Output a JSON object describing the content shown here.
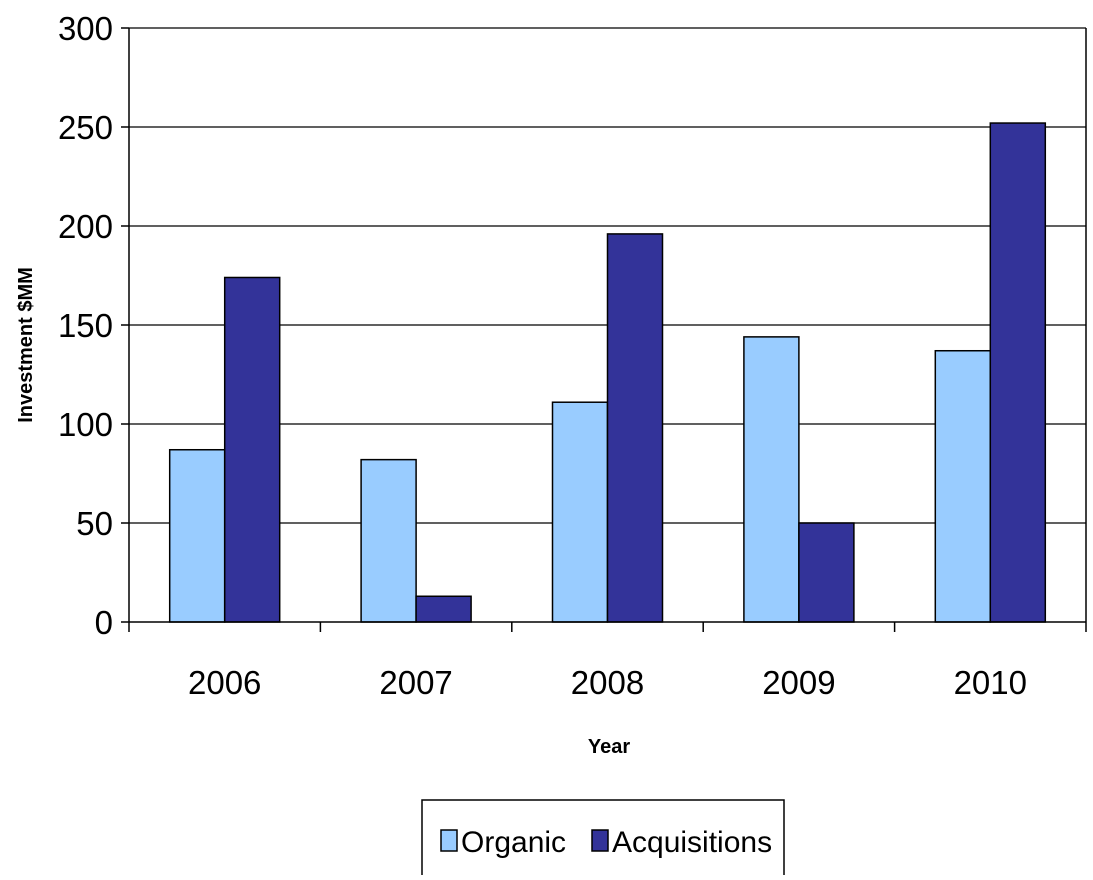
{
  "chart_data": {
    "type": "bar",
    "title": "",
    "xlabel": "Year",
    "ylabel": "Investment $MM",
    "categories": [
      "2006",
      "2007",
      "2008",
      "2009",
      "2010"
    ],
    "series": [
      {
        "name": "Organic",
        "values": [
          87,
          82,
          111,
          144,
          137
        ],
        "color": "#99ccff"
      },
      {
        "name": "Acquisitions",
        "values": [
          174,
          13,
          196,
          50,
          252
        ],
        "color": "#333399"
      }
    ],
    "ylim": [
      0,
      300
    ],
    "yticks": [
      "0",
      "50",
      "100",
      "150",
      "200",
      "250",
      "300"
    ],
    "grid": true,
    "legend": "bottom-center"
  }
}
